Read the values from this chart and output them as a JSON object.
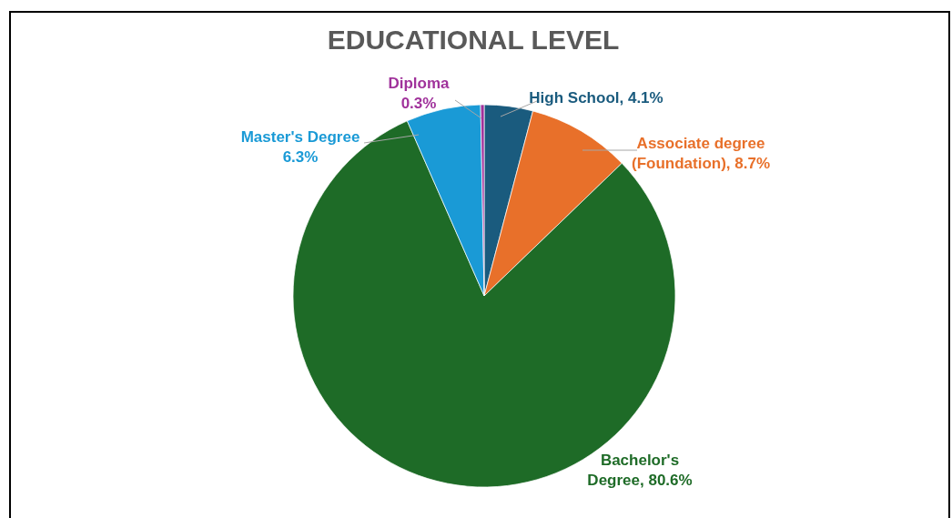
{
  "chart_data": {
    "type": "pie",
    "title": "EDUCATIONAL LEVEL",
    "categories": [
      "High School",
      "Associate degree (Foundation)",
      "Bachelor's Degree",
      "Master's Degree",
      "Diploma"
    ],
    "values": [
      4.1,
      8.7,
      80.6,
      6.3,
      0.3
    ],
    "colors": [
      "#1a5b7e",
      "#e8702a",
      "#1e6b27",
      "#1a9ad6",
      "#a0329b"
    ],
    "value_labels": [
      "4.1%",
      "8.7%",
      "80.6%",
      "6.3%",
      "0.3%"
    ]
  }
}
